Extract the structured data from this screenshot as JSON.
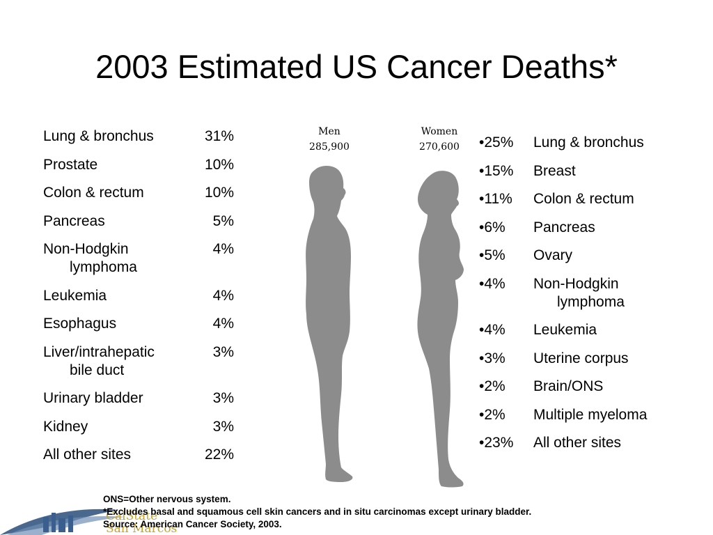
{
  "title": "2003 Estimated US Cancer Deaths*",
  "men": {
    "label": "Men",
    "total": "285,900",
    "rows": [
      {
        "site": "Lung & bronchus",
        "pct": "31%"
      },
      {
        "site": "Prostate",
        "pct": "10%"
      },
      {
        "site": "Colon & rectum",
        "pct": "10%"
      },
      {
        "site": "Pancreas",
        "pct": "5%"
      },
      {
        "site": "Non-Hodgkin",
        "site2": "lymphoma",
        "pct": "4%"
      },
      {
        "site": "Leukemia",
        "pct": "4%"
      },
      {
        "site": "Esophagus",
        "pct": "4%"
      },
      {
        "site": "Liver/intrahepatic",
        "site2": "bile duct",
        "pct": "3%"
      },
      {
        "site": "Urinary bladder",
        "pct": "3%"
      },
      {
        "site": "Kidney",
        "pct": "3%"
      },
      {
        "site": "All other sites",
        "pct": "22%"
      }
    ]
  },
  "women": {
    "label": "Women",
    "total": "270,600",
    "rows": [
      {
        "pct": "•25%",
        "site": "Lung & bronchus"
      },
      {
        "pct": "•15%",
        "site": "Breast"
      },
      {
        "pct": "•11%",
        "site": "Colon & rectum"
      },
      {
        "pct": "•6%",
        "site": "Pancreas"
      },
      {
        "pct": "•5%",
        "site": "Ovary"
      },
      {
        "pct": "•4%",
        "site": "Non-Hodgkin",
        "site2": "lymphoma"
      },
      {
        "pct": "•4%",
        "site": "Leukemia"
      },
      {
        "pct": "•3%",
        "site": "Uterine corpus"
      },
      {
        "pct": "•2%",
        "site": "Brain/ONS"
      },
      {
        "pct": "•2%",
        "site": "Multiple myeloma"
      },
      {
        "pct": "•23%",
        "site": "All other sites"
      }
    ]
  },
  "footnotes": {
    "line1": "ONS=Other nervous system.",
    "line2": "*Excludes basal and squamous cell skin cancers and in situ carcinomas except urinary bladder.",
    "line3": "Source: American Cancer Society, 2003."
  },
  "logo": {
    "line1": "CalState",
    "line2": "San Marcos"
  },
  "colors": {
    "silhouette": "#8c8c8c",
    "logo_blue": "#2a4d7a",
    "logo_gold": "#c9a227"
  }
}
